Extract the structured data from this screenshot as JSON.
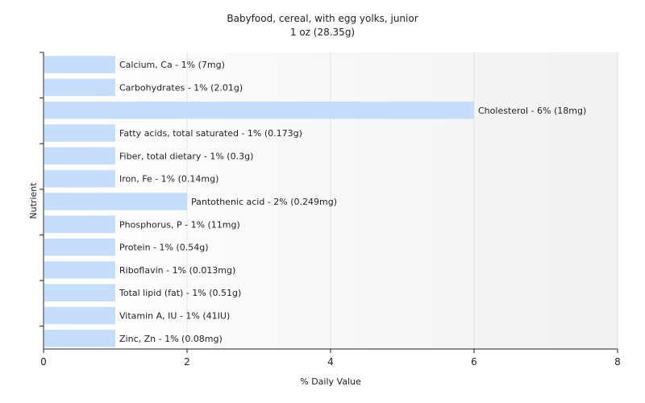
{
  "chart_data": {
    "type": "bar",
    "orientation": "horizontal",
    "title": "Babyfood, cereal, with egg yolks, junior",
    "subtitle": "1 oz (28.35g)",
    "xlabel": "% Daily Value",
    "ylabel": "Nutrient",
    "xlim": [
      0,
      8
    ],
    "xticks": [
      0,
      2,
      4,
      6,
      8
    ],
    "grid": true,
    "bar_color": "#c6ddfb",
    "categories": [
      "Calcium, Ca",
      "Carbohydrates",
      "Cholesterol",
      "Fatty acids, total saturated",
      "Fiber, total dietary",
      "Iron, Fe",
      "Pantothenic acid",
      "Phosphorus, P",
      "Protein",
      "Riboflavin",
      "Total lipid (fat)",
      "Vitamin A, IU",
      "Zinc, Zn"
    ],
    "values": [
      1,
      1,
      6,
      1,
      1,
      1,
      2,
      1,
      1,
      1,
      1,
      1,
      1
    ],
    "labels": [
      "Calcium, Ca - 1% (7mg)",
      "Carbohydrates - 1% (2.01g)",
      "Cholesterol - 6% (18mg)",
      "Fatty acids, total saturated - 1% (0.173g)",
      "Fiber, total dietary - 1% (0.3g)",
      "Iron, Fe - 1% (0.14mg)",
      "Pantothenic acid - 2% (0.249mg)",
      "Phosphorus, P - 1% (11mg)",
      "Protein - 1% (0.54g)",
      "Riboflavin - 1% (0.013mg)",
      "Total lipid (fat) - 1% (0.51g)",
      "Vitamin A, IU - 1% (41IU)",
      "Zinc, Zn - 1% (0.08mg)"
    ]
  }
}
